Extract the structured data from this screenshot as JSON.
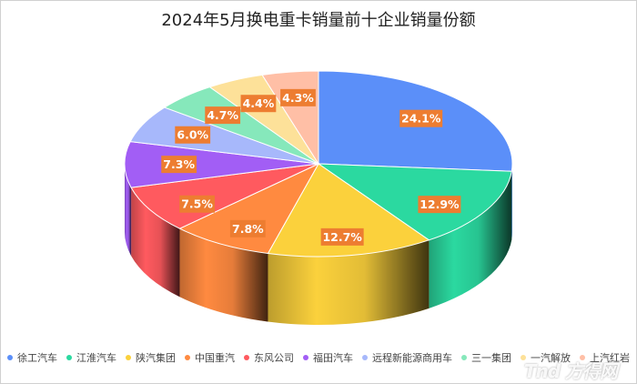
{
  "chart_data": {
    "type": "pie",
    "title": "2024年5月换电重卡销量前十企业销量份额",
    "categories": [
      "徐工汽车",
      "江淮汽车",
      "陕汽集团",
      "中国重汽",
      "东风公司",
      "福田汽车",
      "远程新能源商用车",
      "三一集团",
      "一汽解放",
      "上汽红岩"
    ],
    "values": [
      24.1,
      12.9,
      12.7,
      7.8,
      7.5,
      7.3,
      6.0,
      4.7,
      4.4,
      4.3
    ],
    "labels": [
      "24.1%",
      "12.9%",
      "12.7%",
      "7.8%",
      "7.5%",
      "7.3%",
      "6.0%",
      "4.7%",
      "4.4%",
      "4.3%"
    ],
    "colors": [
      "#5b8ff9",
      "#2bd9a0",
      "#fbd13c",
      "#ff8a40",
      "#ff5a5f",
      "#a25ef5",
      "#a7b8fb",
      "#86e8bb",
      "#fde199",
      "#ffbfa6"
    ],
    "legend_position": "bottom"
  },
  "watermark": "Tnd 方得网"
}
